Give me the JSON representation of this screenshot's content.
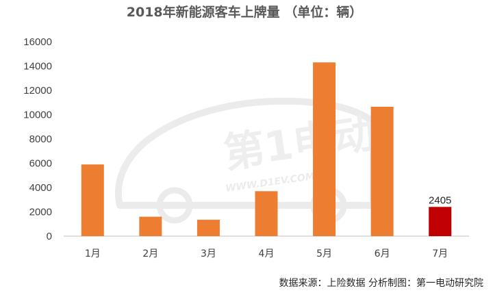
{
  "chart_data": {
    "type": "bar",
    "title": "2018年新能源客车上牌量 （单位：辆）",
    "categories": [
      "1月",
      "2月",
      "3月",
      "4月",
      "5月",
      "6月",
      "7月"
    ],
    "values": [
      5900,
      1600,
      1350,
      3700,
      14300,
      10650,
      2405
    ],
    "ylim": [
      0,
      16000
    ],
    "yticks": [
      0,
      2000,
      4000,
      6000,
      8000,
      10000,
      12000,
      14000,
      16000
    ],
    "data_labels": [
      null,
      null,
      null,
      null,
      null,
      null,
      "2405"
    ],
    "bar_colors": [
      "#ED7D31",
      "#ED7D31",
      "#ED7D31",
      "#ED7D31",
      "#ED7D31",
      "#ED7D31",
      "#C00000"
    ],
    "grid": false,
    "xlabel": "",
    "ylabel": ""
  },
  "footer": {
    "source": "数据来源：上险数据  分析制图：第一电动研究院"
  },
  "watermark": {
    "brand": "第1电动",
    "url": "WWW.D1EV.COM"
  },
  "colors": {
    "bar": "#ED7D31",
    "highlight": "#C00000",
    "axis": "#BFBFBF"
  }
}
